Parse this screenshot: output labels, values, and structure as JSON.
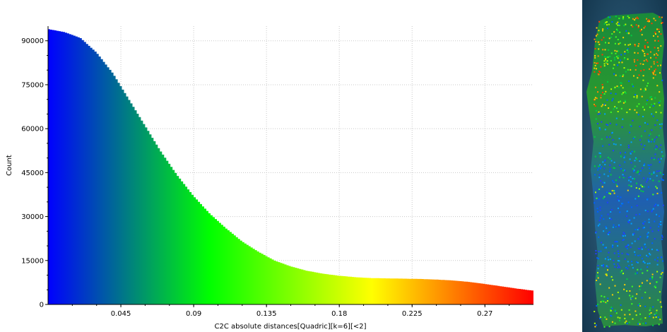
{
  "chart_data": {
    "type": "bar",
    "title": "",
    "xlabel": "C2C absolute distances[Quadric][k=6][<2]",
    "ylabel": "Count",
    "xlim": [
      0,
      0.3
    ],
    "ylim": [
      0,
      95000
    ],
    "grid": true,
    "x_ticks": [
      {
        "value": 0.045,
        "label": "0.045"
      },
      {
        "value": 0.09,
        "label": "0.09"
      },
      {
        "value": 0.135,
        "label": "0.135"
      },
      {
        "value": 0.18,
        "label": "0.18"
      },
      {
        "value": 0.225,
        "label": "0.225"
      },
      {
        "value": 0.27,
        "label": "0.27"
      }
    ],
    "y_ticks": [
      {
        "value": 0,
        "label": "0"
      },
      {
        "value": 15000,
        "label": "15000"
      },
      {
        "value": 30000,
        "label": "30000"
      },
      {
        "value": 45000,
        "label": "45000"
      },
      {
        "value": 60000,
        "label": "60000"
      },
      {
        "value": 75000,
        "label": "75000"
      },
      {
        "value": 90000,
        "label": "90000"
      }
    ],
    "color_ramp": [
      "#0000ff",
      "#00ff00",
      "#ffff00",
      "#ff0000"
    ],
    "series": [
      {
        "x": [
          0,
          0.01,
          0.02,
          0.03,
          0.04,
          0.05,
          0.06,
          0.07,
          0.08,
          0.09,
          0.1,
          0.11,
          0.12,
          0.13,
          0.14,
          0.15,
          0.16,
          0.17,
          0.18,
          0.19,
          0.2,
          0.21,
          0.22,
          0.23,
          0.24,
          0.25,
          0.26,
          0.27,
          0.28,
          0.29,
          0.3
        ],
        "values": [
          94000,
          93000,
          91000,
          86000,
          79000,
          70000,
          61000,
          52000,
          44000,
          37000,
          31000,
          26000,
          21500,
          18000,
          15000,
          13000,
          11500,
          10500,
          9800,
          9300,
          9000,
          8900,
          8800,
          8700,
          8500,
          8200,
          7700,
          7000,
          6200,
          5400,
          4700
        ]
      }
    ]
  }
}
